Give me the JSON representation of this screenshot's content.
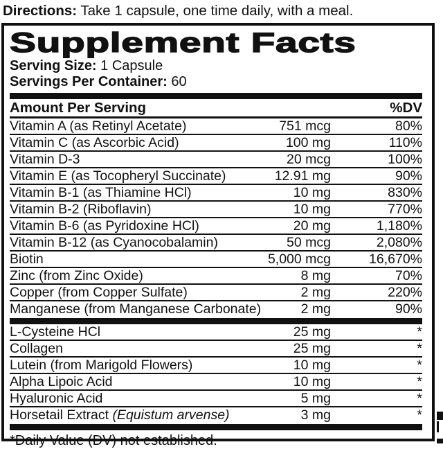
{
  "directions": {
    "label": "Directions:",
    "text": " Take 1 capsule, one time daily, with a meal."
  },
  "panel": {
    "title": "Supplement Facts",
    "serving_size": {
      "label": "Serving Size:",
      "value": " 1 Capsule"
    },
    "servings_per_container": {
      "label": "Servings Per Container:",
      "value": " 60"
    },
    "header": {
      "amount_label": "Amount Per Serving",
      "dv_label": "%DV"
    },
    "main_rows": [
      {
        "name": "Vitamin A (as Retinyl Acetate)",
        "amount": "751 mcg",
        "dv": "80%"
      },
      {
        "name": "Vitamin C (as Ascorbic Acid)",
        "amount": "100 mg",
        "dv": "110%"
      },
      {
        "name": "Vitamin D-3",
        "amount": "20 mcg",
        "dv": "100%"
      },
      {
        "name": "Vitamin E (as Tocopheryl Succinate)",
        "amount": "12.91 mg",
        "dv": "90%"
      },
      {
        "name": "Vitamin B-1 (as Thiamine HCl)",
        "amount": "10 mg",
        "dv": "830%"
      },
      {
        "name": "Vitamin B-2 (Riboflavin)",
        "amount": "10 mg",
        "dv": "770%"
      },
      {
        "name": "Vitamin B-6 (as Pyridoxine HCl)",
        "amount": "20 mg",
        "dv": "1,180%"
      },
      {
        "name": "Vitamin B-12 (as Cyanocobalamin)",
        "amount": "50 mcg",
        "dv": "2,080%"
      },
      {
        "name": "Biotin",
        "amount": "5,000 mcg",
        "dv": "16,670%"
      },
      {
        "name": "Zinc (from Zinc Oxide)",
        "amount": "8 mg",
        "dv": "70%"
      },
      {
        "name": "Copper (from Copper Sulfate)",
        "amount": "2 mg",
        "dv": "220%"
      },
      {
        "name": "Manganese (from Manganese Carbonate)",
        "amount": "2 mg",
        "dv": "90%"
      }
    ],
    "other_rows": [
      {
        "name": "L-Cysteine HCl",
        "amount": "25 mg",
        "dv": "*"
      },
      {
        "name": "Collagen",
        "amount": "25 mg",
        "dv": "*"
      },
      {
        "name": "Lutein (from Marigold Flowers)",
        "amount": "10 mg",
        "dv": "*"
      },
      {
        "name": "Alpha Lipoic Acid",
        "amount": "10 mg",
        "dv": "*"
      },
      {
        "name": "Hyaluronic Acid",
        "amount": "5 mg",
        "dv": "*"
      },
      {
        "name": "Horsetail Extract",
        "latin": "(Equistum arvense)",
        "amount": "3 mg",
        "dv": "*"
      }
    ],
    "footnote": "*Daily Value (DV) not established."
  },
  "colors": {
    "ink": "#111111",
    "paper": "#ffffff"
  }
}
